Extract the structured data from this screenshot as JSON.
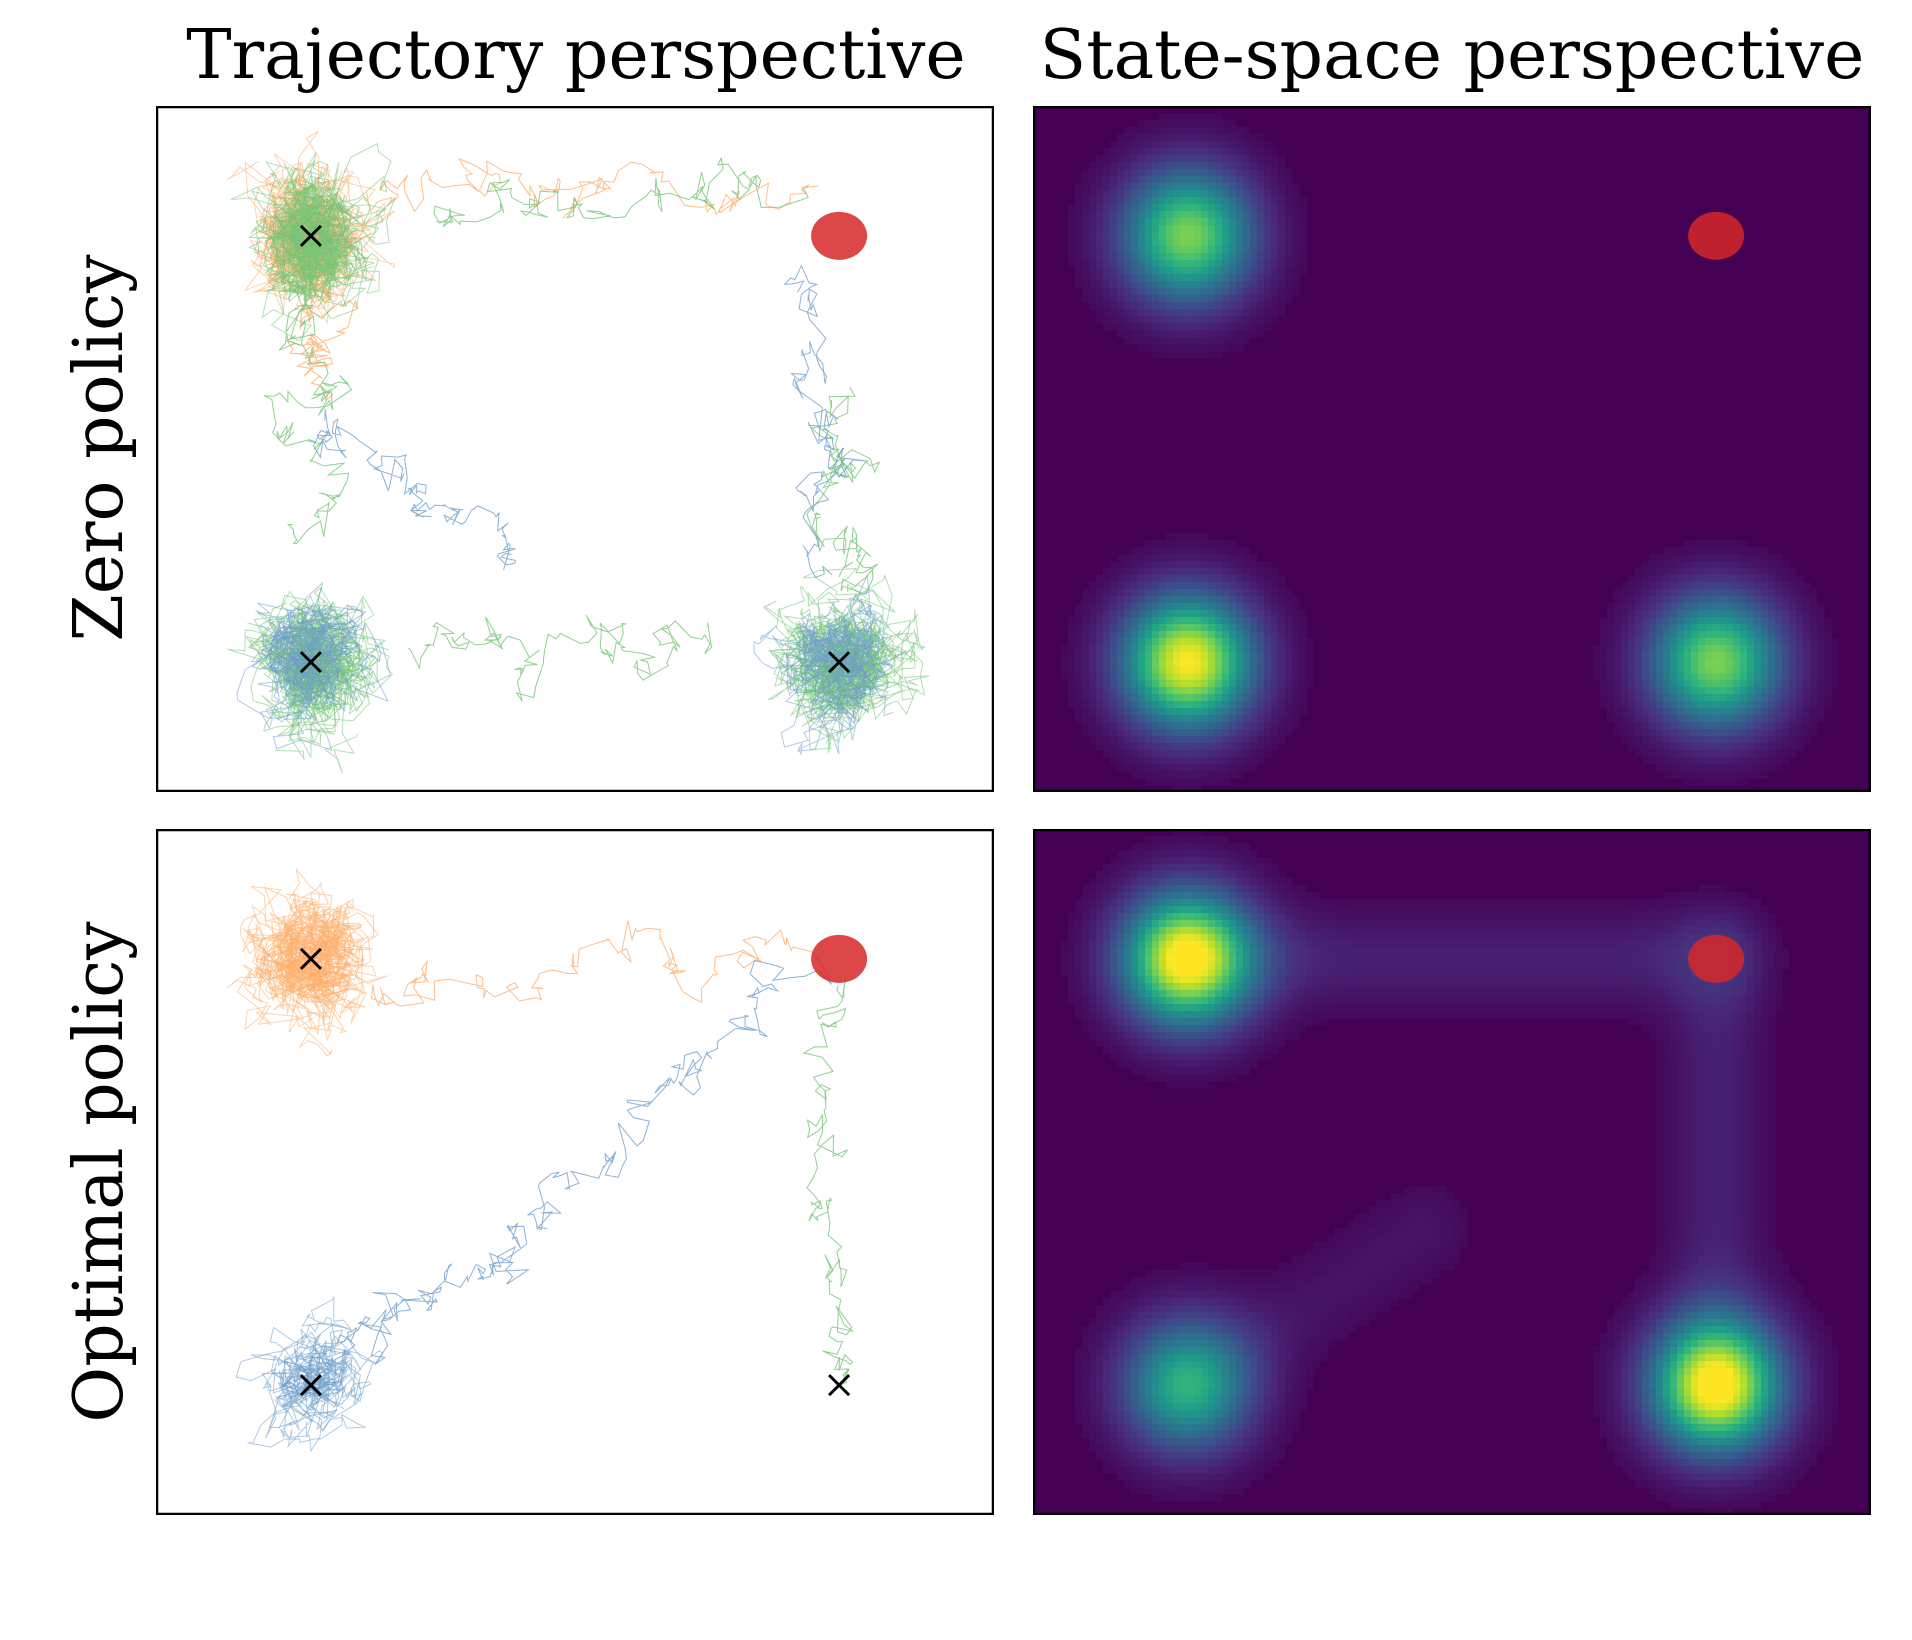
{
  "col_titles": {
    "left": "Trajectory perspective",
    "right": "State-space perspective"
  },
  "row_labels": {
    "top": "Zero policy",
    "bottom": "Optimal policy"
  },
  "colors": {
    "heat_bg": "#440154",
    "goal": "#d62728",
    "marker": "#000000",
    "series": {
      "blue": "#6e9fcb",
      "orange": "#fdae6b",
      "green": "#74c476"
    }
  },
  "icons": {
    "start": "x-mark",
    "goal": "red-disc"
  },
  "chart_data": [
    {
      "panel": "zero-policy-trajectories",
      "type": "scatter",
      "xlim": [
        -1.5,
        1.5
      ],
      "ylim": [
        -1.2,
        1.2
      ],
      "start_markers": [
        {
          "x": -0.95,
          "y": 0.75
        },
        {
          "x": -0.95,
          "y": -0.75
        },
        {
          "x": 0.95,
          "y": -0.75
        }
      ],
      "goal": {
        "x": 0.95,
        "y": 0.75
      },
      "series": [
        {
          "color_key": "orange",
          "clusters": [
            {
              "x": -0.95,
              "y": 0.75,
              "spread": 0.22,
              "weight": 1.0
            }
          ],
          "excursions": [
            [
              -0.75,
              0.9,
              0.9,
              0.9
            ],
            [
              -0.95,
              0.6,
              -0.9,
              0.25
            ]
          ]
        },
        {
          "color_key": "green",
          "clusters": [
            {
              "x": -0.95,
              "y": 0.75,
              "spread": 0.22,
              "weight": 1.0
            },
            {
              "x": -0.95,
              "y": -0.75,
              "spread": 0.24,
              "weight": 1.0
            },
            {
              "x": 0.95,
              "y": -0.75,
              "spread": 0.24,
              "weight": 1.0
            }
          ],
          "excursions": [
            [
              -0.5,
              0.8,
              0.85,
              0.95
            ],
            [
              -0.95,
              0.5,
              -0.95,
              -0.3
            ],
            [
              -0.6,
              -0.7,
              0.6,
              -0.7
            ],
            [
              0.95,
              -0.45,
              0.95,
              0.2
            ]
          ]
        },
        {
          "color_key": "blue",
          "clusters": [
            {
              "x": -0.95,
              "y": -0.75,
              "spread": 0.18,
              "weight": 0.5
            },
            {
              "x": 0.95,
              "y": -0.75,
              "spread": 0.18,
              "weight": 0.5
            }
          ],
          "excursions": [
            [
              0.8,
              0.55,
              0.95,
              -0.4
            ],
            [
              -0.9,
              0.1,
              -0.2,
              -0.4
            ]
          ]
        }
      ]
    },
    {
      "panel": "zero-policy-state-density",
      "type": "heatmap",
      "xlim": [
        -1.5,
        1.5
      ],
      "ylim": [
        -1.2,
        1.2
      ],
      "colormap": "viridis",
      "goal": {
        "x": 0.95,
        "y": 0.75
      },
      "modes": [
        {
          "x": -0.95,
          "y": 0.75,
          "weight": 0.8,
          "spread": 0.16
        },
        {
          "x": -0.95,
          "y": -0.75,
          "weight": 1.0,
          "spread": 0.16
        },
        {
          "x": 0.95,
          "y": -0.75,
          "weight": 0.8,
          "spread": 0.16
        }
      ],
      "paths": []
    },
    {
      "panel": "optimal-policy-trajectories",
      "type": "scatter",
      "xlim": [
        -1.5,
        1.5
      ],
      "ylim": [
        -1.2,
        1.2
      ],
      "start_markers": [
        {
          "x": -0.95,
          "y": 0.75
        },
        {
          "x": -0.95,
          "y": -0.75
        },
        {
          "x": 0.95,
          "y": -0.75
        }
      ],
      "goal": {
        "x": 0.95,
        "y": 0.75
      },
      "series": [
        {
          "color_key": "orange",
          "clusters": [
            {
              "x": -0.95,
              "y": 0.75,
              "spread": 0.17,
              "weight": 1.0
            }
          ],
          "excursions": [
            [
              -0.7,
              0.65,
              0.9,
              0.8
            ]
          ]
        },
        {
          "color_key": "blue",
          "clusters": [
            {
              "x": -0.95,
              "y": -0.75,
              "spread": 0.14,
              "weight": 0.4
            }
          ],
          "excursions": [
            [
              -0.95,
              -0.7,
              -0.1,
              -0.2
            ],
            [
              -0.1,
              -0.2,
              0.9,
              0.8
            ]
          ]
        },
        {
          "color_key": "green",
          "clusters": [],
          "excursions": [
            [
              0.95,
              -0.75,
              0.85,
              0.75
            ]
          ]
        }
      ]
    },
    {
      "panel": "optimal-policy-state-density",
      "type": "heatmap",
      "xlim": [
        -1.5,
        1.5
      ],
      "ylim": [
        -1.2,
        1.2
      ],
      "colormap": "viridis",
      "goal": {
        "x": 0.95,
        "y": 0.75
      },
      "modes": [
        {
          "x": -0.95,
          "y": 0.75,
          "weight": 1.0,
          "spread": 0.16
        },
        {
          "x": -0.95,
          "y": -0.75,
          "weight": 0.6,
          "spread": 0.16
        },
        {
          "x": 0.95,
          "y": -0.75,
          "weight": 1.0,
          "spread": 0.16
        }
      ],
      "paths": [
        {
          "x1": -0.95,
          "y1": 0.75,
          "x2": 0.95,
          "y2": 0.75,
          "weight": 0.09
        },
        {
          "x1": 0.95,
          "y1": 0.75,
          "x2": 0.95,
          "y2": -0.75,
          "weight": 0.09
        },
        {
          "x1": -0.95,
          "y1": -0.75,
          "x2": -0.1,
          "y2": -0.2,
          "weight": 0.05
        }
      ]
    }
  ]
}
